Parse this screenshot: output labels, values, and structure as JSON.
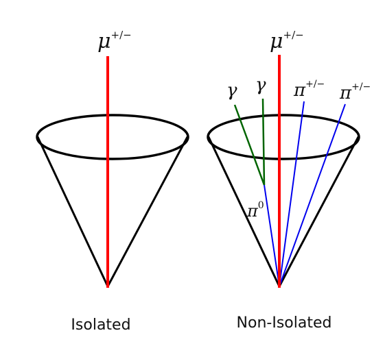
{
  "colors": {
    "cone": "#000000",
    "muon": "#ff0000",
    "photon": "#006400",
    "pion": "#0000ee",
    "text": "#111111"
  },
  "isolated": {
    "caption": "Isolated",
    "muon_label": "μ",
    "muon_charge": "+/−"
  },
  "non_isolated": {
    "caption": "Non-Isolated",
    "muon_label": "μ",
    "muon_charge": "+/−",
    "photon_labels": [
      "γ",
      "γ"
    ],
    "pion_label": "π",
    "pion_charge": "+/−",
    "neutral_pion_label": "π",
    "neutral_pion_charge": "0"
  }
}
